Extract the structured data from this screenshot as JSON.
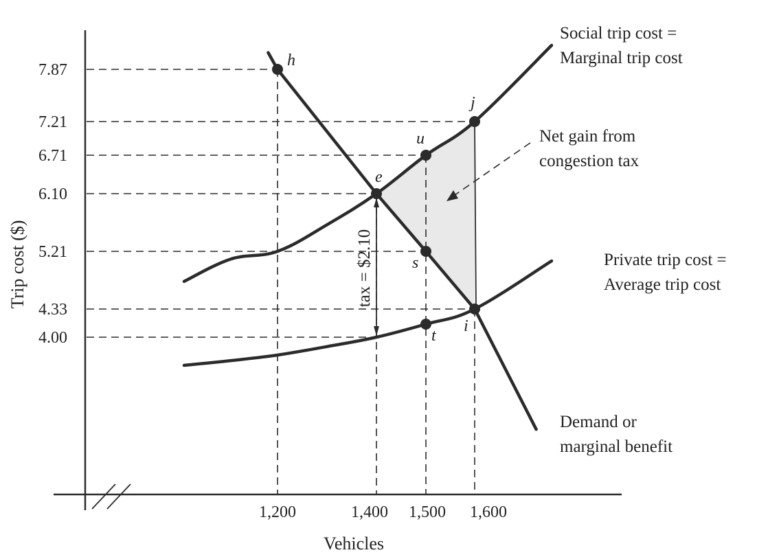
{
  "chart_data": {
    "type": "line",
    "xlabel": "Vehicles",
    "ylabel": "Trip cost ($)",
    "x_ticks": [
      {
        "label": "1,200",
        "value": 1200
      },
      {
        "label": "1,400",
        "value": 1400
      },
      {
        "label": "1,500",
        "value": 1500
      },
      {
        "label": "1,600",
        "value": 1600
      }
    ],
    "y_ticks": [
      {
        "label": "7.87",
        "value": 7.87
      },
      {
        "label": "7.21",
        "value": 7.21
      },
      {
        "label": "6.71",
        "value": 6.71
      },
      {
        "label": "6.10",
        "value": 6.1
      },
      {
        "label": "5.21",
        "value": 5.21
      },
      {
        "label": "4.33",
        "value": 4.33
      },
      {
        "label": "4.00",
        "value": 4.0
      }
    ],
    "series": [
      {
        "name": "Social trip cost = Marginal trip cost",
        "label_lines": [
          "Social trip cost =",
          "Marginal trip cost"
        ],
        "x": [
          1000,
          1100,
          1200,
          1300,
          1400,
          1500,
          1600,
          1700
        ],
        "y": [
          4.6,
          4.88,
          5.21,
          5.62,
          6.1,
          6.71,
          7.21,
          8.2
        ]
      },
      {
        "name": "Private trip cost = Average trip cost",
        "label_lines": [
          "Private trip cost =",
          "Average trip cost"
        ],
        "x": [
          1000,
          1100,
          1200,
          1300,
          1400,
          1500,
          1600,
          1700
        ],
        "y": [
          3.4,
          3.5,
          3.62,
          3.8,
          4.0,
          4.12,
          4.33,
          4.8
        ]
      },
      {
        "name": "Demand or marginal benefit",
        "label_lines": [
          "Demand or",
          "marginal benefit"
        ],
        "x": [
          1180,
          1200,
          1400,
          1500,
          1600,
          1680
        ],
        "y": [
          8.1,
          7.87,
          6.1,
          5.21,
          4.33,
          2.3
        ]
      }
    ],
    "points": [
      {
        "label": "h",
        "x": 1200,
        "y": 7.87
      },
      {
        "label": "j",
        "x": 1600,
        "y": 7.21
      },
      {
        "label": "u",
        "x": 1500,
        "y": 6.71
      },
      {
        "label": "e",
        "x": 1400,
        "y": 6.1
      },
      {
        "label": "s",
        "x": 1500,
        "y": 5.21
      },
      {
        "label": "i",
        "x": 1600,
        "y": 4.33
      },
      {
        "label": "t",
        "x": 1500,
        "y": 4.12
      }
    ],
    "shaded_region": {
      "label_lines": [
        "Net gain from",
        "congestion tax"
      ],
      "vertices": [
        "e",
        "j",
        "i"
      ]
    },
    "tax_annotation": {
      "text": "tax = $2.10",
      "x": 1400,
      "from": 4.0,
      "to": 6.1
    },
    "xlim": [
      800,
      1800
    ],
    "ylim": [
      0,
      8.5
    ],
    "axis_break": true,
    "grid": false
  }
}
